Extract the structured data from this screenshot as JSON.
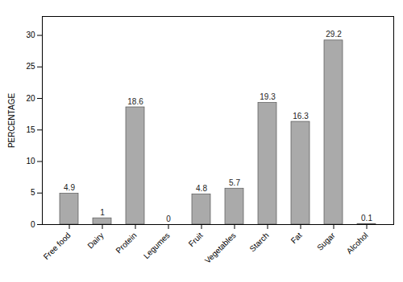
{
  "chart_data": {
    "type": "bar",
    "categories": [
      "Free food",
      "Dairy",
      "Protein",
      "Legumes",
      "Fruit",
      "Vegetables",
      "Starch",
      "Fat",
      "Sugar",
      "Alcohol"
    ],
    "values": [
      4.9,
      1.0,
      18.6,
      0.0,
      4.8,
      5.7,
      19.3,
      16.3,
      29.2,
      0.1
    ],
    "color": "#aaaaaa",
    "ylabel": "PERCENTAGE",
    "ylim": [
      0,
      33
    ],
    "yticks": [
      0,
      5,
      10,
      15,
      20,
      25,
      30
    ],
    "grid": false,
    "data_labels": true
  }
}
